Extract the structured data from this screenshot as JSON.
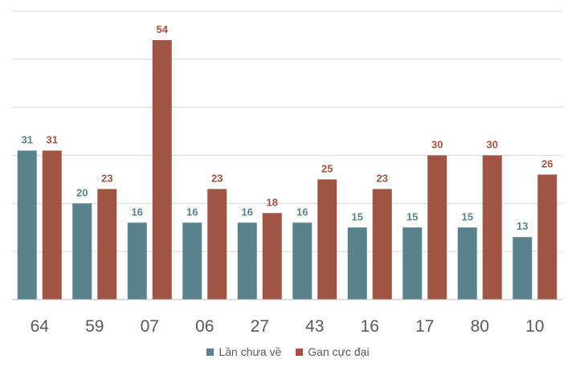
{
  "chart_data": {
    "type": "bar",
    "title": "",
    "xlabel": "",
    "ylabel": "",
    "categories": [
      "64",
      "59",
      "07",
      "06",
      "27",
      "43",
      "16",
      "17",
      "80",
      "10"
    ],
    "series": [
      {
        "name": "Lần chưa về",
        "color": "#5A828C",
        "values": [
          31,
          20,
          16,
          16,
          16,
          16,
          15,
          15,
          15,
          13
        ]
      },
      {
        "name": "Gan cực đại",
        "color": "#A05444",
        "values": [
          31,
          23,
          54,
          23,
          18,
          25,
          23,
          30,
          30,
          26
        ]
      }
    ],
    "ylim": [
      0,
      60
    ],
    "grid": true,
    "legend": "bottom"
  }
}
